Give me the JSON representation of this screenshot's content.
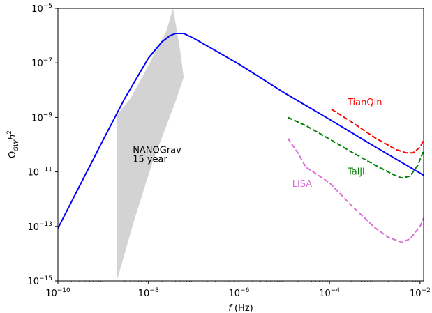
{
  "chart_data": {
    "type": "line",
    "xscale": "log",
    "yscale": "log",
    "xlim": [
      1e-10,
      0.012
    ],
    "ylim": [
      1e-15,
      1e-05
    ],
    "xlabel": {
      "italic": "f",
      "rest": " (Hz)"
    },
    "ylabel": {
      "base": "Ω",
      "sub": "GW",
      "mid": "h",
      "sup": "2"
    },
    "grid": false,
    "xticks": [
      {
        "value": 1e-10,
        "base": "10",
        "exp": "−10"
      },
      {
        "value": 1e-08,
        "base": "10",
        "exp": "−8"
      },
      {
        "value": 1e-06,
        "base": "10",
        "exp": "−6"
      },
      {
        "value": 0.0001,
        "base": "10",
        "exp": "−4"
      },
      {
        "value": 0.01,
        "base": "10",
        "exp": "−2"
      }
    ],
    "yticks": [
      {
        "value": 1e-15,
        "base": "10",
        "exp": "−15"
      },
      {
        "value": 1e-13,
        "base": "10",
        "exp": "−13"
      },
      {
        "value": 1e-11,
        "base": "10",
        "exp": "−11"
      },
      {
        "value": 1e-09,
        "base": "10",
        "exp": "−9"
      },
      {
        "value": 1e-07,
        "base": "10",
        "exp": "−7"
      },
      {
        "value": 1e-05,
        "base": "10",
        "exp": "−5"
      }
    ],
    "regions": [
      {
        "name": "NANOGrav 15 year",
        "label_lines": [
          "NANOGrav",
          "15 year"
        ],
        "label_at": [
          4.5e-09,
          5e-11
        ],
        "color": "#d3d3d3",
        "polygon": [
          [
            2e-09,
            1.2e-09
          ],
          [
            4e-09,
            5e-09
          ],
          [
            8e-09,
            4e-08
          ],
          [
            1.5e-08,
            3e-07
          ],
          [
            2.5e-08,
            1.5e-06
          ],
          [
            3.5e-08,
            1e-05
          ],
          [
            5e-08,
            3e-07
          ],
          [
            6e-08,
            3e-08
          ],
          [
            4e-08,
            4e-09
          ],
          [
            2.5e-08,
            5e-10
          ],
          [
            1.2e-08,
            2e-11
          ],
          [
            5e-09,
            2e-13
          ],
          [
            2e-09,
            1e-15
          ]
        ]
      }
    ],
    "series": [
      {
        "name": "",
        "color": "#0000ff",
        "dash": "solid",
        "points": [
          [
            1e-10,
            8.5e-14
          ],
          [
            3e-10,
            3e-12
          ],
          [
            1e-09,
            1.5e-10
          ],
          [
            3e-09,
            5e-09
          ],
          [
            1e-08,
            1.5e-07
          ],
          [
            2e-08,
            6e-07
          ],
          [
            3e-08,
            1e-06
          ],
          [
            4e-08,
            1.2e-06
          ],
          [
            6e-08,
            1.2e-06
          ],
          [
            1e-07,
            8e-07
          ],
          [
            1e-06,
            9e-08
          ],
          [
            1e-05,
            8e-09
          ],
          [
            0.0001,
            8.5e-10
          ],
          [
            0.001,
            8.5e-11
          ],
          [
            0.01,
            9e-12
          ],
          [
            0.012,
            7.5e-12
          ]
        ]
      },
      {
        "name": "TianQin",
        "label_at": [
          0.00025,
          2.8e-09
        ],
        "color": "#ff0000",
        "dash": "dashed",
        "points": [
          [
            0.00011,
            2e-09
          ],
          [
            0.0003,
            7e-10
          ],
          [
            0.001,
            1.8e-10
          ],
          [
            0.003,
            6.5e-11
          ],
          [
            0.005,
            5e-11
          ],
          [
            0.007,
            5e-11
          ],
          [
            0.01,
            8e-11
          ],
          [
            0.012,
            1.5e-10
          ]
        ]
      },
      {
        "name": "Taiji",
        "label_at": [
          0.00025,
          8e-12
        ],
        "color": "#008000",
        "dash": "dashed",
        "points": [
          [
            1.2e-05,
            1e-09
          ],
          [
            3e-05,
            5e-10
          ],
          [
            0.0001,
            1.6e-10
          ],
          [
            0.0003,
            5.5e-11
          ],
          [
            0.001,
            1.8e-11
          ],
          [
            0.003,
            7e-12
          ],
          [
            0.004,
            6e-12
          ],
          [
            0.006,
            7e-12
          ],
          [
            0.009,
            1.8e-11
          ],
          [
            0.012,
            6e-11
          ]
        ]
      },
      {
        "name": "LISA",
        "label_at": [
          1.5e-05,
          2.8e-12
        ],
        "color": "#da70d6",
        "dash": "dashed",
        "points": [
          [
            1.2e-05,
            1.7e-10
          ],
          [
            2e-05,
            5e-11
          ],
          [
            3e-05,
            1.5e-11
          ],
          [
            0.0001,
            4e-12
          ],
          [
            0.0003,
            6e-13
          ],
          [
            0.001,
            9e-14
          ],
          [
            0.002,
            4e-14
          ],
          [
            0.004,
            2.6e-14
          ],
          [
            0.006,
            3.5e-14
          ],
          [
            0.01,
            1e-13
          ],
          [
            0.012,
            2e-13
          ]
        ]
      }
    ]
  }
}
